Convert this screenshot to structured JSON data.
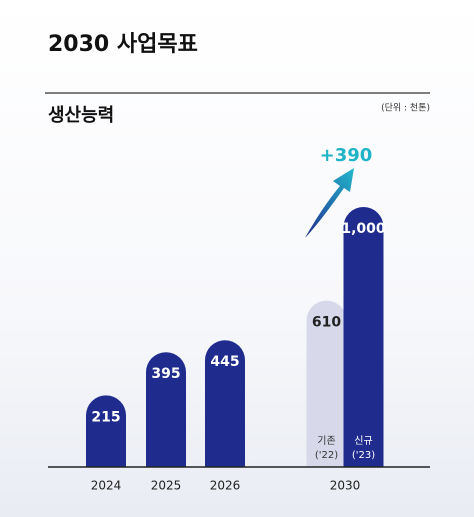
{
  "title": "2030 사업목표",
  "chart_data": {
    "type": "bar",
    "title": "생산능력",
    "unit": "(단위 : 천톤)",
    "categories": [
      "2024",
      "2025",
      "2026",
      "2030"
    ],
    "series": [
      {
        "name": "기존",
        "period": "('22)",
        "color": "#d7d9ea",
        "values": [
          null,
          null,
          null,
          610
        ]
      },
      {
        "name": "신규",
        "period": "('23)",
        "color": "#1f2c8e",
        "values": [
          215,
          395,
          445,
          1000
        ],
        "value_labels": [
          "215",
          "395",
          "445",
          "1,000"
        ]
      }
    ],
    "annotation": "+390"
  }
}
